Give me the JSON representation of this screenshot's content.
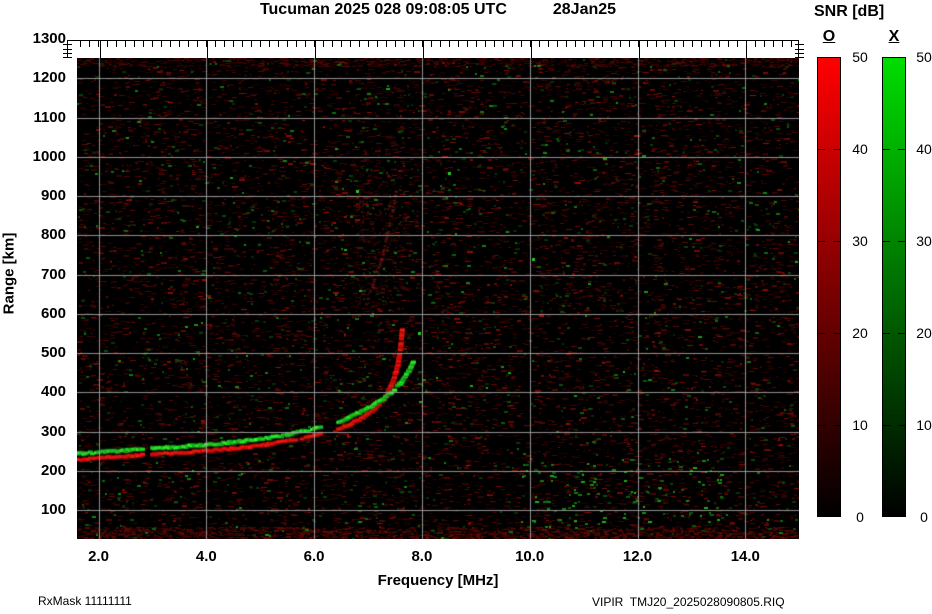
{
  "header": {
    "title": "Tucuman 2025 028 09:08:05 UTC",
    "date": "28Jan25"
  },
  "axes": {
    "x": {
      "label": "Frequency [MHz]",
      "tick_labels": [
        "2.0",
        "4.0",
        "6.0",
        "8.0",
        "10.0",
        "12.0",
        "14.0"
      ],
      "tick_values": [
        2,
        4,
        6,
        8,
        10,
        12,
        14
      ]
    },
    "y": {
      "label": "Range [km]",
      "tick_labels": [
        "1300",
        "1200",
        "1100",
        "1000",
        "900",
        "800",
        "700",
        "600",
        "500",
        "400",
        "300",
        "200",
        "100"
      ],
      "tick_values": [
        1300,
        1200,
        1100,
        1000,
        900,
        800,
        700,
        600,
        500,
        400,
        300,
        200,
        100
      ]
    }
  },
  "colorbar": {
    "title": "SNR [dB]",
    "o_label": "O",
    "x_label": "X",
    "tick_labels": [
      "50",
      "40",
      "30",
      "20",
      "10",
      "0"
    ],
    "tick_values": [
      50,
      40,
      30,
      20,
      10,
      0
    ],
    "o_top_color": "#ff0000",
    "x_top_color": "#00dd00",
    "min": 0,
    "max": 50
  },
  "footer": {
    "left": "RxMask 11111111",
    "right": "VIPIR  TMJ20_2025028090805.RIQ"
  },
  "chart_data": {
    "type": "heatmap",
    "title": "Tucuman 2025 028 09:08:05 UTC 28Jan25",
    "xlabel": "Frequency [MHz]",
    "ylabel": "Range [km]",
    "xlim": [
      1.6,
      15.0
    ],
    "ylim": [
      30,
      1250
    ],
    "x_ticks": [
      2,
      4,
      6,
      8,
      10,
      12,
      14
    ],
    "y_ticks": [
      100,
      200,
      300,
      400,
      500,
      600,
      700,
      800,
      900,
      1000,
      1100,
      1200,
      1300
    ],
    "grid": true,
    "background": "black with dark-red (O) and green (X) noise speckles",
    "colorbar": {
      "label": "SNR [dB]",
      "range": [
        0,
        50
      ],
      "ticks": [
        50,
        40,
        30,
        20,
        10,
        0
      ],
      "polarizations": [
        "O",
        "X"
      ]
    },
    "series": [
      {
        "name": "O-mode F trace",
        "color": "#dd1414",
        "points_mhz_km": [
          [
            1.6,
            230
          ],
          [
            2.0,
            233
          ],
          [
            2.5,
            238
          ],
          [
            3.0,
            243
          ],
          [
            3.5,
            247
          ],
          [
            4.0,
            252
          ],
          [
            4.5,
            258
          ],
          [
            5.0,
            266
          ],
          [
            5.5,
            277
          ],
          [
            6.0,
            291
          ],
          [
            6.3,
            302
          ],
          [
            6.6,
            316
          ],
          [
            6.9,
            336
          ],
          [
            7.1,
            356
          ],
          [
            7.3,
            385
          ],
          [
            7.45,
            425
          ],
          [
            7.55,
            472
          ],
          [
            7.6,
            520
          ],
          [
            7.63,
            562
          ]
        ]
      },
      {
        "name": "X-mode F trace",
        "color": "#22cc22",
        "points_mhz_km": [
          [
            1.6,
            245
          ],
          [
            2.0,
            248
          ],
          [
            2.5,
            253
          ],
          [
            3.0,
            258
          ],
          [
            3.5,
            262
          ],
          [
            4.0,
            267
          ],
          [
            4.5,
            274
          ],
          [
            5.0,
            282
          ],
          [
            5.5,
            293
          ],
          [
            6.0,
            308
          ],
          [
            6.3,
            319
          ],
          [
            6.6,
            334
          ],
          [
            6.9,
            354
          ],
          [
            7.2,
            378
          ],
          [
            7.4,
            398
          ],
          [
            7.6,
            424
          ],
          [
            7.75,
            455
          ],
          [
            7.85,
            482
          ]
        ]
      },
      {
        "name": "faint O-mode second reflection",
        "color": "#8c1a1a",
        "points_mhz_km": [
          [
            6.95,
            620
          ],
          [
            7.1,
            680
          ],
          [
            7.25,
            740
          ],
          [
            7.35,
            800
          ],
          [
            7.45,
            860
          ],
          [
            7.52,
            920
          ]
        ]
      }
    ],
    "trace_gaps_mhz": [
      [
        2.83,
        2.97
      ],
      [
        6.15,
        6.42
      ]
    ]
  },
  "render": {
    "seed": 1337,
    "red_noise_count": 16000,
    "green_noise_count": 1100
  }
}
